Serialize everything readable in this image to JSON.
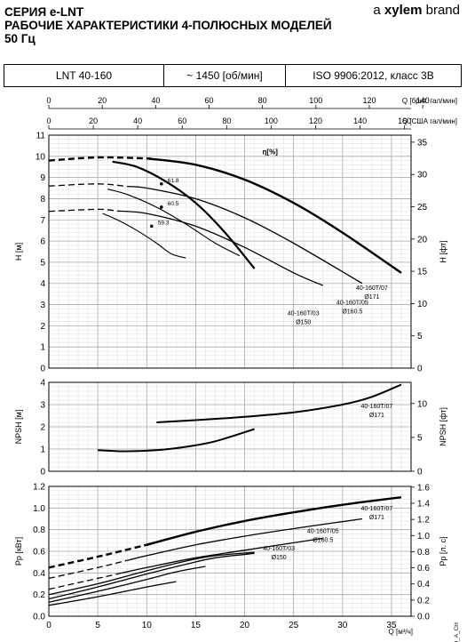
{
  "header": {
    "series_line": "СЕРИЯ e-LNT",
    "title_line": "РАБОЧИЕ ХАРАКТЕРИСТИКИ 4-ПОЛЮСНЫХ МОДЕЛЕЙ",
    "freq_line": "50 Гц",
    "brand_prefix": "a ",
    "brand_name": "xylem",
    "brand_suffix": " brand"
  },
  "info": {
    "model": "LNT 40-160",
    "speed": "~ 1450 [об/мин]",
    "standard": "ISO 9906:2012, класс 3B"
  },
  "doc_code": "0_4P50_A_CH",
  "colors": {
    "curve": "#000000",
    "grid": "#aaaaaa",
    "grid_minor": "#dddddd"
  },
  "chart_data": [
    {
      "type": "line",
      "panel": "head",
      "top_axis_1": {
        "label": "Q [брит. гал/мин]",
        "ticks": [
          0,
          20,
          40,
          60,
          80,
          100,
          120,
          140,
          160
        ]
      },
      "top_axis_2": {
        "label": "Q [США гал/мин]",
        "ticks": [
          0,
          20,
          40,
          60,
          80,
          100,
          120,
          140,
          160
        ]
      },
      "ylabel": "H [м]",
      "ylabel_right": "H [фт]",
      "ylim": [
        0,
        11
      ],
      "yticks": [
        0,
        1,
        2,
        3,
        4,
        5,
        6,
        7,
        8,
        9,
        10,
        11
      ],
      "yticks_right": [
        0,
        5,
        10,
        15,
        20,
        25,
        30,
        35
      ],
      "xlim": [
        0,
        37
      ],
      "eta_label": "η[%]",
      "series": [
        {
          "name": "40-160T/07 Ø171",
          "label_line1": "40-160T/07",
          "label_line2": "Ø171",
          "x": [
            0,
            5,
            10,
            15,
            20,
            25,
            30,
            36
          ],
          "y": [
            9.8,
            9.95,
            9.9,
            9.6,
            8.9,
            7.8,
            6.4,
            4.5
          ],
          "dashed_until": 10
        },
        {
          "name": "40-160T/05 Ø160.5",
          "label_line1": "40-160T/05",
          "label_line2": "Ø160.5",
          "x": [
            0,
            5,
            10,
            15,
            20,
            25,
            32
          ],
          "y": [
            8.6,
            8.7,
            8.5,
            8.0,
            7.1,
            5.9,
            4.0
          ],
          "dashed_until": 8
        },
        {
          "name": "40-160T/03 Ø150",
          "label_line1": "40-160T/03",
          "label_line2": "Ø150",
          "x": [
            0,
            5,
            10,
            15,
            20,
            25,
            28
          ],
          "y": [
            7.4,
            7.5,
            7.3,
            6.7,
            5.7,
            4.5,
            3.9
          ],
          "dashed_until": 7
        }
      ],
      "efficiency_curves": [
        {
          "label": "59.3",
          "x": [
            5.5,
            7,
            9,
            11,
            12.5,
            14
          ],
          "y": [
            7.3,
            7.0,
            6.5,
            5.9,
            5.4,
            5.2
          ]
        },
        {
          "label": "60.5",
          "x": [
            6,
            8,
            11,
            14,
            17,
            19.5
          ],
          "y": [
            8.45,
            8.2,
            7.6,
            6.8,
            5.9,
            5.3
          ]
        },
        {
          "label": "61.8",
          "x": [
            6.5,
            9,
            12,
            15,
            18,
            21
          ],
          "y": [
            9.75,
            9.5,
            8.8,
            7.8,
            6.4,
            4.7
          ]
        }
      ],
      "efficiency_points": [
        {
          "label": "61.8",
          "x": 11.5,
          "y": 8.7
        },
        {
          "label": "60.5",
          "x": 11.5,
          "y": 7.6
        },
        {
          "label": "59.3",
          "x": 10.5,
          "y": 6.7
        }
      ]
    },
    {
      "type": "line",
      "panel": "npsh",
      "ylabel": "NPSH [м]",
      "ylabel_right": "NPSH [фт]",
      "ylim": [
        0,
        4
      ],
      "yticks": [
        0,
        1,
        2,
        3,
        4
      ],
      "yticks_right": [
        0,
        5,
        10
      ],
      "xlim": [
        0,
        37
      ],
      "label_line1": "40-160T/07",
      "label_line2": "Ø171",
      "series": [
        {
          "name": "low",
          "x": [
            5,
            8,
            11,
            14,
            17,
            21
          ],
          "y": [
            0.95,
            0.9,
            0.95,
            1.1,
            1.35,
            1.9
          ]
        },
        {
          "name": "high",
          "x": [
            11,
            15,
            20,
            25,
            30,
            33,
            36
          ],
          "y": [
            2.2,
            2.3,
            2.45,
            2.65,
            3.0,
            3.35,
            3.9
          ]
        }
      ]
    },
    {
      "type": "line",
      "panel": "power",
      "ylabel": "Pp [кВт]",
      "ylabel_right": "Pp [л. с]",
      "ylim": [
        0,
        1.2
      ],
      "yticks": [
        0.0,
        0.2,
        0.4,
        0.6,
        0.8,
        1.0,
        1.2
      ],
      "yticks_right": [
        0.0,
        0.2,
        0.4,
        0.6,
        0.8,
        1.0,
        1.2,
        1.4,
        1.6
      ],
      "xlabel": "Q [м³/ч]",
      "xticks": [
        0,
        5,
        10,
        15,
        20,
        25,
        30,
        35
      ],
      "xlim": [
        0,
        37
      ],
      "series": [
        {
          "name": "40-160T/07 Ø171",
          "label_line1": "40-160T/07",
          "label_line2": "Ø171",
          "x": [
            0,
            5,
            10,
            15,
            20,
            25,
            30,
            36
          ],
          "y": [
            0.45,
            0.55,
            0.66,
            0.78,
            0.88,
            0.96,
            1.03,
            1.1
          ],
          "dashed_until": 10
        },
        {
          "name": "40-160T/05 Ø160.5",
          "label_line1": "40-160T/05",
          "label_line2": "Ø160.5",
          "x": [
            0,
            5,
            10,
            15,
            20,
            25,
            32
          ],
          "y": [
            0.35,
            0.45,
            0.56,
            0.66,
            0.74,
            0.81,
            0.9
          ],
          "dashed_until": 8
        },
        {
          "name": "40-160T/03 Ø150",
          "label_line1": "40-160T/03",
          "label_line2": "Ø150",
          "x": [
            0,
            5,
            10,
            15,
            20,
            28
          ],
          "y": [
            0.25,
            0.35,
            0.45,
            0.54,
            0.61,
            0.72
          ],
          "dashed_until": 7
        },
        {
          "name": "eff-line-1",
          "x": [
            0,
            5,
            10,
            14,
            17,
            21
          ],
          "y": [
            0.2,
            0.3,
            0.42,
            0.51,
            0.56,
            0.59
          ]
        },
        {
          "name": "eff-line-2",
          "x": [
            0,
            5,
            10,
            14,
            17,
            21
          ],
          "y": [
            0.16,
            0.27,
            0.39,
            0.48,
            0.54,
            0.58
          ]
        },
        {
          "name": "eff-line-3",
          "x": [
            0,
            5,
            10,
            13,
            16
          ],
          "y": [
            0.13,
            0.23,
            0.34,
            0.41,
            0.46
          ]
        },
        {
          "name": "eff-line-4",
          "x": [
            0,
            5,
            10,
            13
          ],
          "y": [
            0.1,
            0.18,
            0.27,
            0.32
          ]
        }
      ]
    }
  ]
}
